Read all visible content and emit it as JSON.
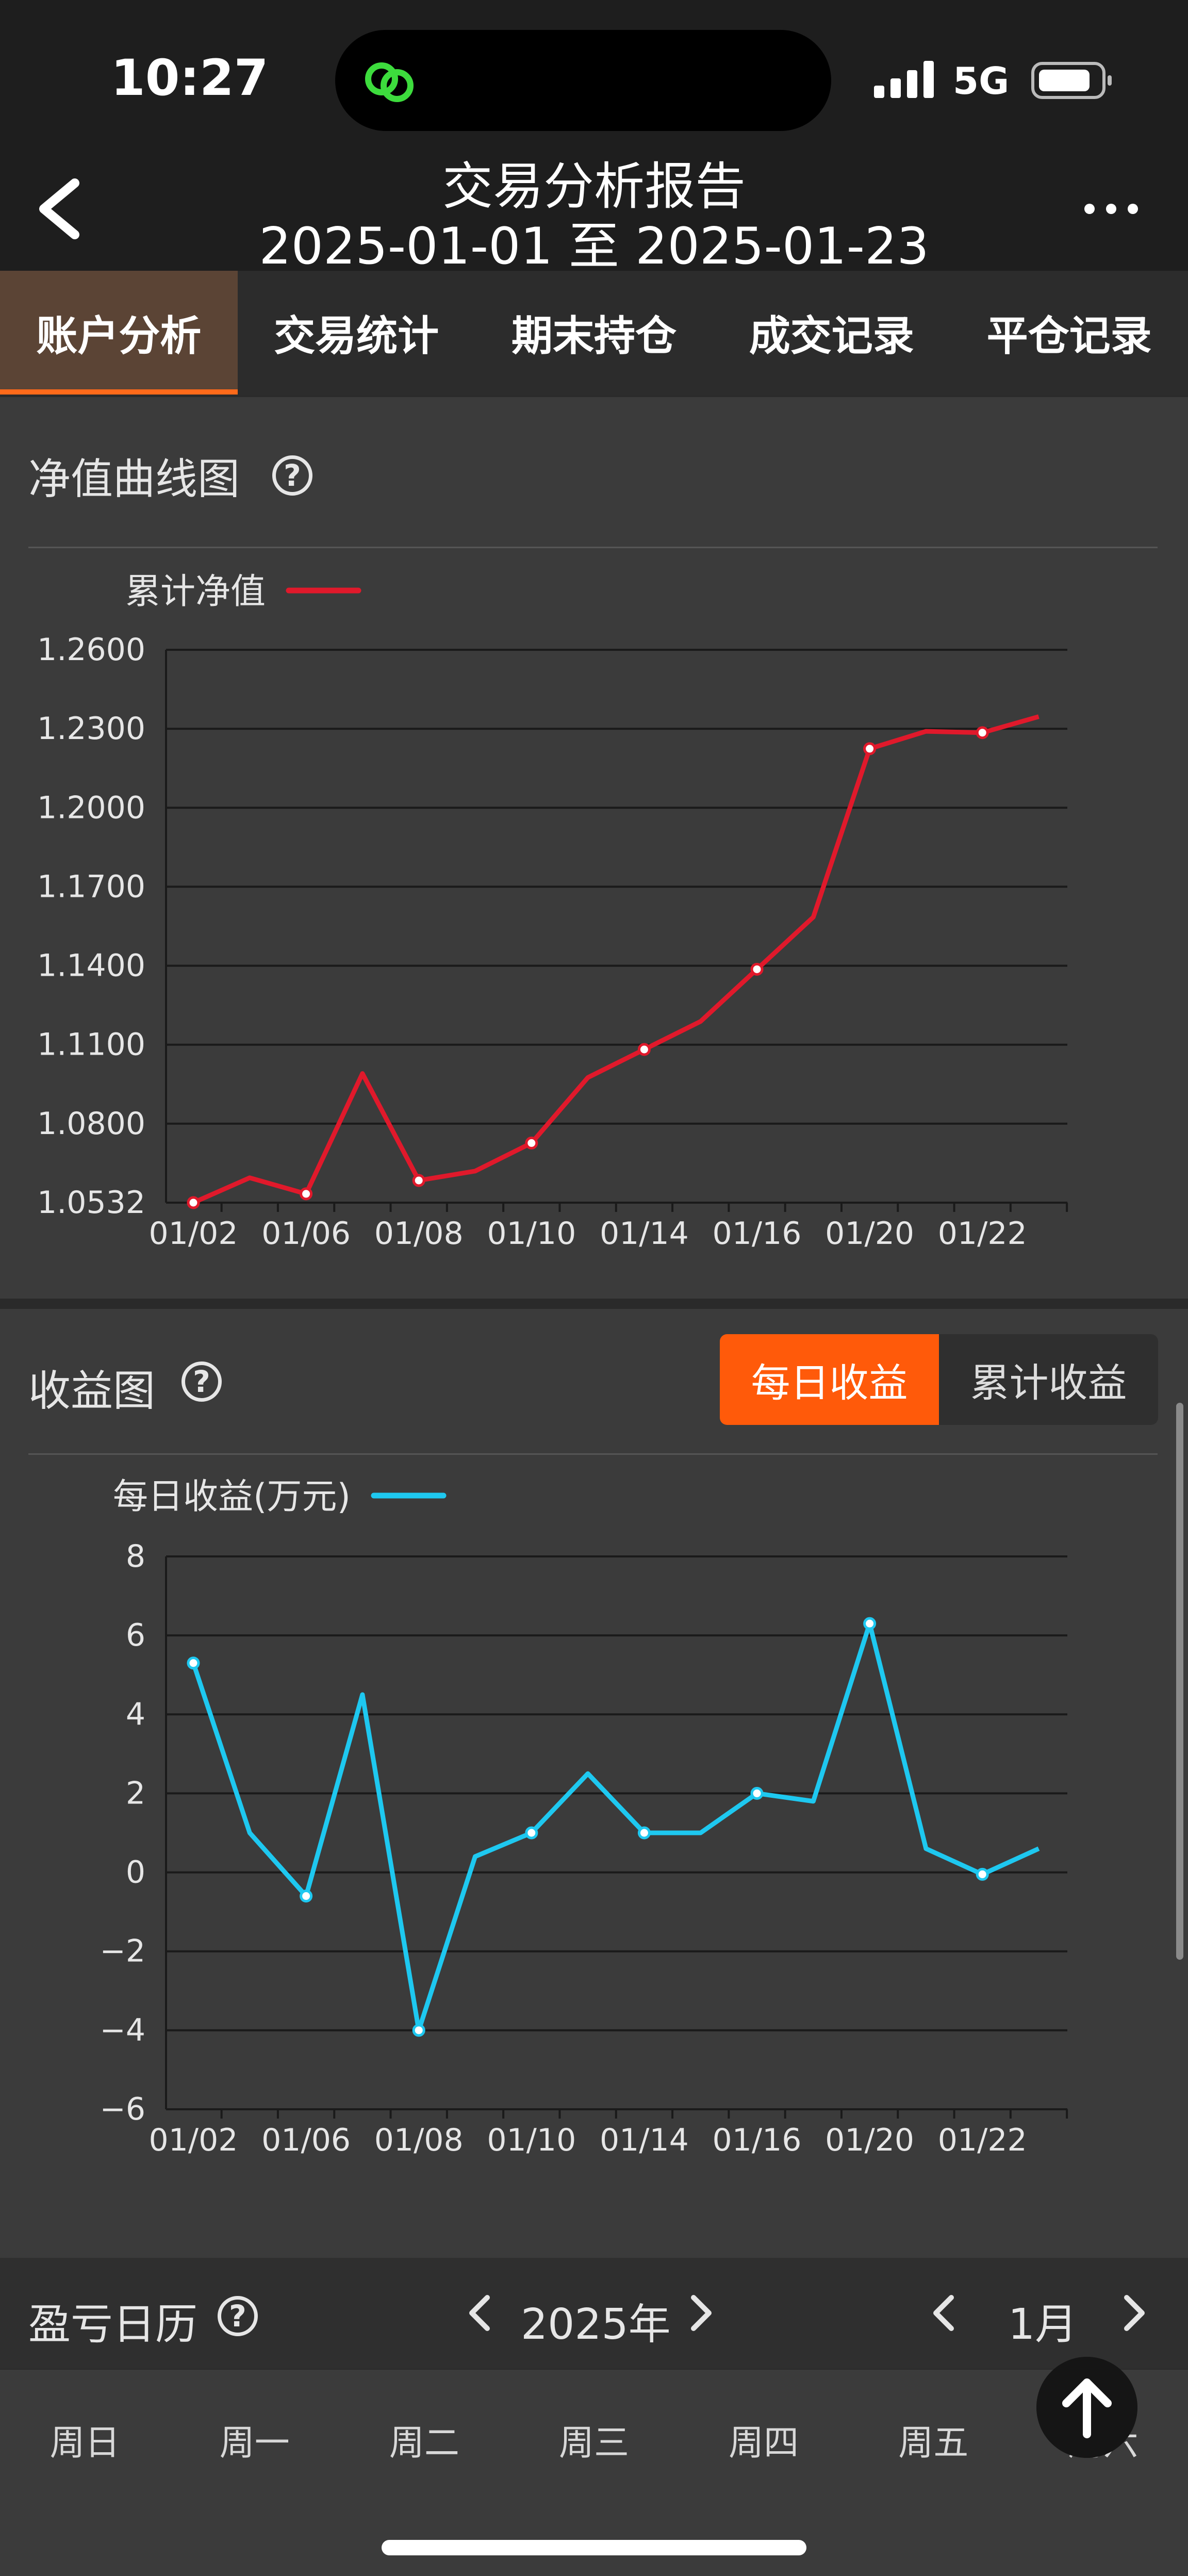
{
  "status": {
    "time": "10:27",
    "network": "5G"
  },
  "header": {
    "title": "交易分析报告",
    "range": "2025-01-01 至 2025-01-23"
  },
  "tabs": [
    {
      "label": "账户分析",
      "active": true
    },
    {
      "label": "交易统计",
      "active": false
    },
    {
      "label": "期末持仓",
      "active": false
    },
    {
      "label": "成交记录",
      "active": false
    },
    {
      "label": "平仓记录",
      "active": false
    }
  ],
  "nav_section": {
    "title": "净值曲线图",
    "help": "?"
  },
  "profit_section": {
    "title": "收益图",
    "help": "?",
    "toggle_daily": "每日收益",
    "toggle_cumulative": "累计收益"
  },
  "calendar": {
    "title": "盈亏日历",
    "help": "?",
    "year": "2025年",
    "month": "1月",
    "weekdays": [
      "周日",
      "周一",
      "周二",
      "周三",
      "周四",
      "周五",
      "周六"
    ]
  },
  "colors": {
    "nav_line": "#e0192b",
    "profit_line": "#1ec8f0",
    "accent": "#ff5a0a"
  },
  "chart_data": [
    {
      "type": "line",
      "legend": "累计净值",
      "yticks": [
        "1.2600",
        "1.2300",
        "1.2000",
        "1.1700",
        "1.1400",
        "1.1100",
        "1.0800",
        "1.0532"
      ],
      "ylim": [
        1.0532,
        1.26
      ],
      "xticks": [
        "01/02",
        "01/06",
        "01/08",
        "01/10",
        "01/14",
        "01/16",
        "01/20",
        "01/22"
      ],
      "x": [
        "01/02",
        "01/03",
        "01/06",
        "01/07",
        "01/08",
        "01/09",
        "01/10",
        "01/13",
        "01/14",
        "01/15",
        "01/16",
        "01/17",
        "01/20",
        "01/21",
        "01/22",
        "01/23"
      ],
      "values": [
        1.0532,
        1.0625,
        1.0565,
        1.1015,
        1.0615,
        1.065,
        1.0755,
        1.1,
        1.1105,
        1.121,
        1.1405,
        1.16,
        1.223,
        1.2295,
        1.229,
        1.235
      ],
      "markers": [
        0,
        2,
        4,
        6,
        8,
        10,
        12,
        14
      ]
    },
    {
      "type": "line",
      "legend": "每日收益(万元)",
      "yticks": [
        "8",
        "6",
        "4",
        "2",
        "0",
        "−2",
        "−4",
        "−6"
      ],
      "ylim": [
        -6,
        8
      ],
      "xticks": [
        "01/02",
        "01/06",
        "01/08",
        "01/10",
        "01/14",
        "01/16",
        "01/20",
        "01/22"
      ],
      "x": [
        "01/02",
        "01/03",
        "01/06",
        "01/07",
        "01/08",
        "01/09",
        "01/10",
        "01/13",
        "01/14",
        "01/15",
        "01/16",
        "01/17",
        "01/20",
        "01/21",
        "01/22",
        "01/23"
      ],
      "values": [
        5.3,
        1.0,
        -0.6,
        4.5,
        -4.0,
        0.4,
        1.0,
        2.5,
        1.0,
        1.0,
        2.0,
        1.8,
        6.3,
        0.6,
        -0.05,
        0.6
      ],
      "markers": [
        0,
        2,
        4,
        6,
        8,
        10,
        12,
        14
      ]
    }
  ]
}
